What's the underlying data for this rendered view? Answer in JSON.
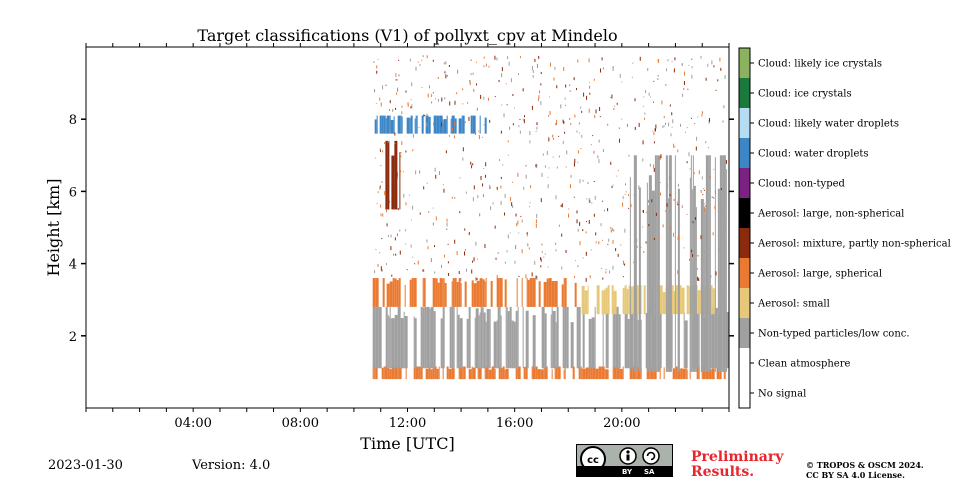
{
  "chart_data": {
    "type": "heatmap",
    "title": "Target classifications (V1) of pollyxt_cpv at Mindelo",
    "xlabel": "Time [UTC]",
    "ylabel": "Height [km]",
    "xlim_hours": [
      0,
      24
    ],
    "ylim_km": [
      0,
      10
    ],
    "x_ticks": [
      {
        "hour": 4,
        "label": "04:00"
      },
      {
        "hour": 8,
        "label": "08:00"
      },
      {
        "hour": 12,
        "label": "12:00"
      },
      {
        "hour": 16,
        "label": "16:00"
      },
      {
        "hour": 20,
        "label": "20:00"
      }
    ],
    "y_ticks": [
      {
        "value": 2,
        "label": "2"
      },
      {
        "value": 4,
        "label": "4"
      },
      {
        "value": 6,
        "label": "6"
      },
      {
        "value": 8,
        "label": "8"
      }
    ],
    "classes": [
      {
        "label": "Cloud: likely ice crystals",
        "color": "#8bb35f"
      },
      {
        "label": "Cloud: ice crystals",
        "color": "#1a7a3c"
      },
      {
        "label": "Cloud: likely water droplets",
        "color": "#b6dcf4"
      },
      {
        "label": "Cloud: water droplets",
        "color": "#3d86c6"
      },
      {
        "label": "Cloud: non-typed",
        "color": "#7b2282"
      },
      {
        "label": "Aerosol: large, non-spherical",
        "color": "#000000"
      },
      {
        "label": "Aerosol: mixture, partly non-spherical",
        "color": "#8b2a0c"
      },
      {
        "label": "Aerosol: large, spherical",
        "color": "#ea7a32"
      },
      {
        "label": "Aerosol: small",
        "color": "#e6c878"
      },
      {
        "label": "Non-typed particles/low conc.",
        "color": "#a0a0a0"
      },
      {
        "label": "Clean atmosphere",
        "color": "#ffffff"
      },
      {
        "label": "No signal",
        "color": "#ffffff"
      }
    ],
    "measurement_period_hours": [
      10.7,
      23.9
    ],
    "layers": [
      {
        "class": "Aerosol: large, spherical",
        "from_hour": 10.7,
        "to_hour": 23.9,
        "bottom_km": 0.8,
        "top_km": 1.15
      },
      {
        "class": "Non-typed particles/low conc.",
        "from_hour": 10.7,
        "to_hour": 23.9,
        "bottom_km": 1.1,
        "top_km": 2.8
      },
      {
        "class": "Aerosol: large, spherical",
        "from_hour": 10.7,
        "to_hour": 18.5,
        "bottom_km": 2.8,
        "top_km": 3.6
      },
      {
        "class": "Aerosol: small",
        "from_hour": 18.5,
        "to_hour": 23.9,
        "bottom_km": 2.6,
        "top_km": 3.4
      },
      {
        "class": "Cloud: water droplets",
        "from_hour": 10.7,
        "to_hour": 15.2,
        "bottom_km": 7.6,
        "top_km": 8.1
      },
      {
        "class": "Aerosol: mixture, partly non-spherical",
        "from_hour": 11.1,
        "to_hour": 11.7,
        "bottom_km": 5.5,
        "top_km": 7.4
      },
      {
        "class": "Non-typed particles/low conc.",
        "from_hour": 20.3,
        "to_hour": 23.9,
        "bottom_km": 1.0,
        "top_km": 7.0
      }
    ]
  },
  "footer": {
    "date": "2023-01-30",
    "version": "Version: 4.0",
    "preliminary_line1": "Preliminary",
    "preliminary_line2": "Results.",
    "copyright_line1": "© TROPOS & OSCM 2024.",
    "copyright_line2": "CC BY SA 4.0 License.",
    "license_badge": {
      "cc": "cc",
      "by": "BY",
      "sa": "SA"
    }
  }
}
